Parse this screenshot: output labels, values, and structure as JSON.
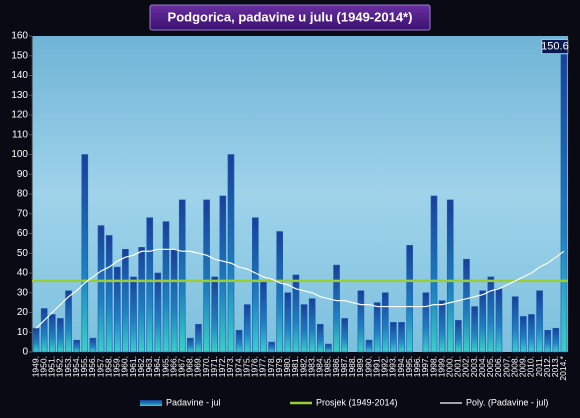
{
  "chart_data": {
    "type": "bar",
    "title": "Podgorica, padavine u julu (1949-2014*)",
    "categories": [
      "1949.",
      "1950.",
      "1951.",
      "1952.",
      "1953.",
      "1954.",
      "1955.",
      "1956.",
      "1957.",
      "1958.",
      "1959.",
      "1960.",
      "1961.",
      "1962.",
      "1963.",
      "1964.",
      "1965.",
      "1966.",
      "1967.",
      "1968.",
      "1969.",
      "1970.",
      "1971.",
      "1972.",
      "1973.",
      "1974.",
      "1975.",
      "1976.",
      "1977.",
      "1978.",
      "1979.",
      "1980.",
      "1981.",
      "1982.",
      "1983.",
      "1984.",
      "1985.",
      "1986.",
      "1987.",
      "1988.",
      "1989.",
      "1990.",
      "1991.",
      "1992.",
      "1993.",
      "1994.",
      "1995.",
      "1996.",
      "1997.",
      "1998.",
      "1999.",
      "2000.",
      "2001.",
      "2002.",
      "2003.",
      "2004.",
      "2005.",
      "2006.",
      "2007.",
      "2008.",
      "2009.",
      "2010.",
      "2011.",
      "2012.",
      "2013.",
      "2014.*"
    ],
    "series": [
      {
        "name": "Padavine - jul",
        "type": "bar",
        "color": "#1a5fb0",
        "values": [
          12,
          22,
          19,
          17,
          31,
          6,
          100,
          7,
          64,
          59,
          43,
          52,
          38,
          53,
          68,
          40,
          66,
          52,
          77,
          7,
          14,
          77,
          38,
          79,
          100,
          11,
          24,
          68,
          36,
          5,
          61,
          30,
          39,
          24,
          27,
          14,
          4,
          44,
          17,
          0,
          31,
          6,
          25,
          30,
          15,
          15,
          54,
          0,
          30,
          79,
          26,
          77,
          16,
          47,
          23,
          31,
          38,
          32,
          0,
          28,
          18,
          19,
          31,
          11,
          12,
          150.6
        ]
      },
      {
        "name": "Prosjek (1949-2014)",
        "type": "hline",
        "color": "#9acd32",
        "value": 36
      },
      {
        "name": "Poly. (Padavine - jul)",
        "type": "line",
        "color": "#ffffff",
        "values": [
          12,
          16,
          20,
          24,
          28,
          31,
          35,
          38,
          41,
          43,
          46,
          48,
          49,
          51,
          51,
          52,
          52,
          52,
          51,
          51,
          50,
          49,
          47,
          46,
          45,
          43,
          42,
          40,
          38,
          37,
          35,
          34,
          32,
          31,
          30,
          28,
          27,
          26,
          26,
          25,
          24,
          24,
          23,
          23,
          23,
          23,
          23,
          23,
          23,
          24,
          24,
          25,
          26,
          27,
          28,
          29,
          31,
          32,
          34,
          36,
          38,
          40,
          43,
          45,
          48,
          51
        ]
      }
    ],
    "ylim": [
      0,
      160
    ],
    "yticks": [
      0,
      10,
      20,
      30,
      40,
      50,
      60,
      70,
      80,
      90,
      100,
      110,
      120,
      130,
      140,
      150,
      160
    ],
    "grid": false
  }
}
